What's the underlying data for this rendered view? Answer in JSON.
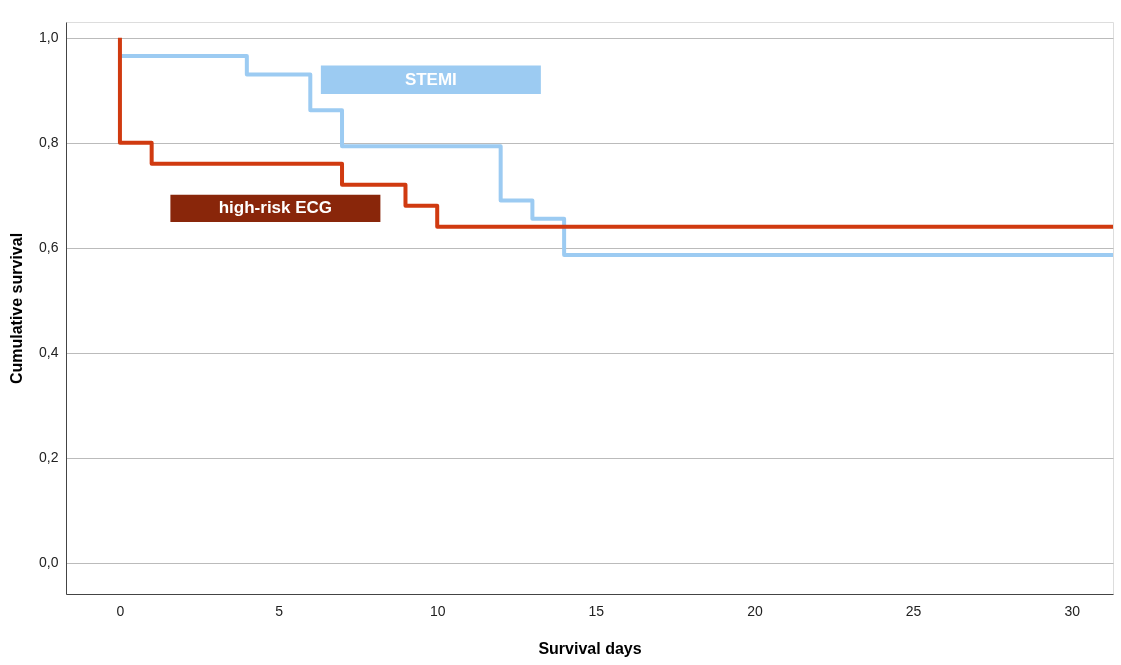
{
  "chart_data": {
    "type": "step",
    "xlabel": "Survival days",
    "ylabel": "Cumulative survival",
    "xlim": [
      -1.7,
      31.3
    ],
    "xticks": [
      0,
      5,
      10,
      15,
      20,
      25,
      30
    ],
    "ylim": [
      -0.06,
      1.03
    ],
    "yticks": [
      {
        "value": 0,
        "label": "0,0"
      },
      {
        "value": 0.2,
        "label": "0,2"
      },
      {
        "value": 0.4,
        "label": "0,4"
      },
      {
        "value": 0.6,
        "label": "0,6"
      },
      {
        "value": 0.8,
        "label": "0,8"
      },
      {
        "value": 1.0,
        "label": "1,0"
      }
    ],
    "grid": "y",
    "line_style": "solid",
    "marker": "none",
    "series": [
      {
        "name": "STEMI",
        "color": "#9ccbf2",
        "x": [
          0,
          4,
          6,
          7,
          12,
          13,
          14,
          31.3
        ],
        "values": [
          0.965,
          0.93,
          0.862,
          0.793,
          0.69,
          0.655,
          0.586,
          0.586
        ]
      },
      {
        "name": "high-risk ECG",
        "color": "#d03a10",
        "x": [
          0,
          0,
          1,
          7,
          9,
          10,
          31.3
        ],
        "values": [
          1.0,
          0.8,
          0.76,
          0.72,
          0.68,
          0.64,
          0.64
        ]
      }
    ]
  }
}
